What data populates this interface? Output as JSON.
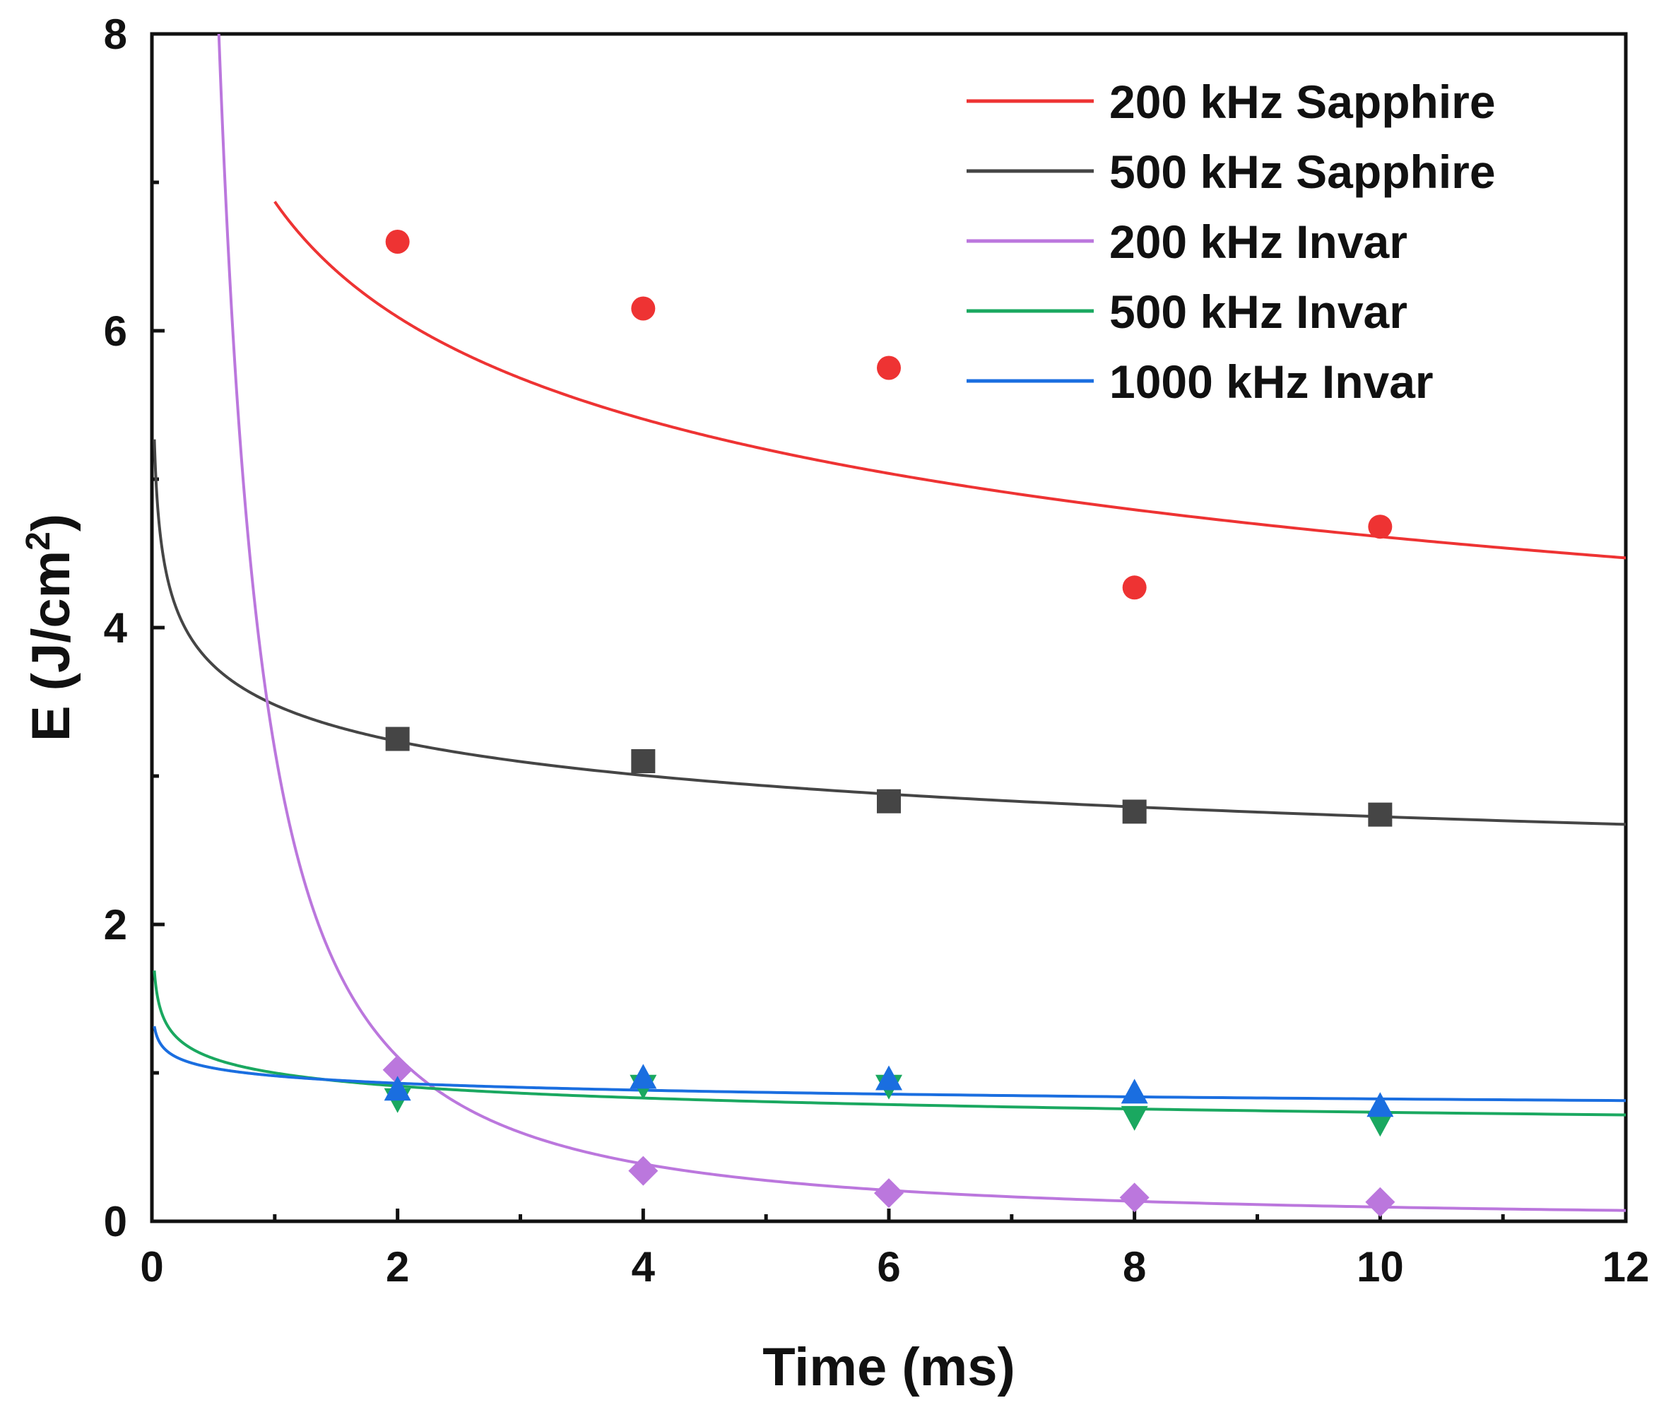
{
  "chart_data": {
    "type": "scatter",
    "title": "",
    "xlabel": "Time (ms)",
    "ylabel_main": "E (J/cm",
    "ylabel_sup": "2",
    "ylabel_close": ")",
    "xlim": [
      0,
      12
    ],
    "ylim": [
      0,
      8
    ],
    "x_major_ticks": [
      "0",
      "2",
      "4",
      "6",
      "8",
      "10",
      "12"
    ],
    "y_major_ticks": [
      "0",
      "2",
      "4",
      "6",
      "8"
    ],
    "legend_position": "top-right",
    "series": [
      {
        "name": "200 kHz Sapphire",
        "color": "#ee3333",
        "marker": "circle",
        "points": [
          [
            2,
            6.6
          ],
          [
            4,
            6.15
          ],
          [
            6,
            5.75
          ],
          [
            8,
            4.27
          ],
          [
            10,
            4.68
          ]
        ],
        "fit": {
          "a": 6.87,
          "b": -0.173,
          "x_start": 1.0
        }
      },
      {
        "name": "500 kHz Sapphire",
        "color": "#454545",
        "marker": "square",
        "points": [
          [
            2,
            3.25
          ],
          [
            4,
            3.1
          ],
          [
            6,
            2.83
          ],
          [
            8,
            2.76
          ],
          [
            10,
            2.74
          ]
        ],
        "fit": {
          "a": 3.48,
          "b": -0.106,
          "x_start": 0.02
        }
      },
      {
        "name": "200 kHz Invar",
        "color": "#bb77dd",
        "marker": "diamond",
        "points": [
          [
            2,
            1.02
          ],
          [
            4,
            0.34
          ],
          [
            6,
            0.19
          ],
          [
            8,
            0.16
          ],
          [
            10,
            0.13
          ]
        ],
        "fit": {
          "a": 3.18,
          "b": -1.52,
          "x_start": 0.45
        }
      },
      {
        "name": "500 kHz Invar",
        "color": "#1aa860",
        "marker": "triangle-down",
        "points": [
          [
            2,
            0.83
          ],
          [
            4,
            0.92
          ],
          [
            6,
            0.92
          ],
          [
            8,
            0.71
          ],
          [
            10,
            0.67
          ]
        ],
        "fit": {
          "a": 1.0,
          "b": -0.134,
          "x_start": 0.02
        }
      },
      {
        "name": "1000 kHz Invar",
        "color": "#1a6ee0",
        "marker": "triangle-up",
        "points": [
          [
            2,
            0.88
          ],
          [
            4,
            0.96
          ],
          [
            6,
            0.95
          ],
          [
            8,
            0.86
          ],
          [
            10,
            0.77
          ]
        ],
        "fit": {
          "a": 0.98,
          "b": -0.075,
          "x_start": 0.02
        }
      }
    ]
  }
}
